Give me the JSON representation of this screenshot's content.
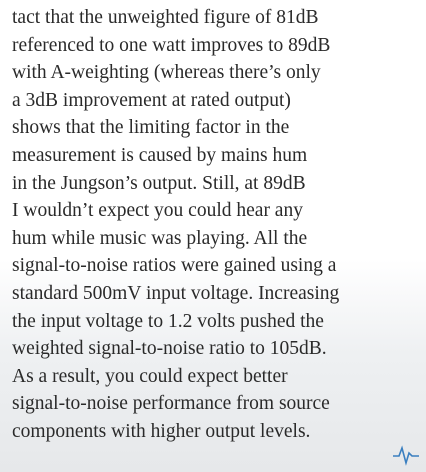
{
  "paragraph": {
    "lines": [
      "tact that the unweighted figure of 81dB",
      "referenced to one watt improves to 89dB",
      "with A-weighting (whereas there’s only",
      "a 3dB improvement at rated output)",
      "shows that the limiting factor in the",
      "measurement is caused by mains hum",
      "in the Jungson’s output. Still, at 89dB",
      "I wouldn’t expect you could hear any",
      "hum while music was playing. All the",
      "signal-to-noise ratios were gained using a",
      "standard 500mV input voltage. Increasing",
      "the input voltage to 1.2 volts pushed the",
      "weighted signal-to-noise ratio to 105dB.",
      "As a result, you could expect better",
      "signal-to-noise performance from source",
      "components with higher output levels."
    ]
  }
}
